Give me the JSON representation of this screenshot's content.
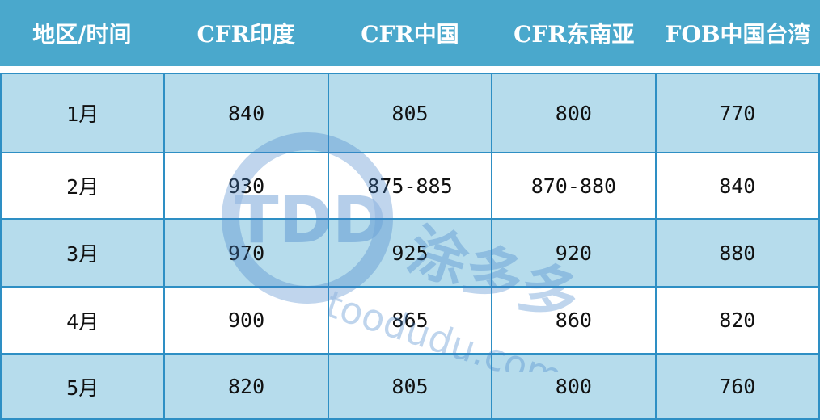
{
  "table": {
    "headers": [
      "地区/时间",
      "CFR印度",
      "CFR中国",
      "CFR东南亚",
      "FOB中国台湾"
    ],
    "rows": [
      [
        "1月",
        "840",
        "805",
        "800",
        "770"
      ],
      [
        "2月",
        "930",
        "875-885",
        "870-880",
        "840"
      ],
      [
        "3月",
        "970",
        "925",
        "920",
        "880"
      ],
      [
        "4月",
        "900",
        "865",
        "860",
        "820"
      ],
      [
        "5月",
        "820",
        "805",
        "800",
        "760"
      ]
    ]
  },
  "watermark": {
    "logo": "TDD",
    "brand": "涂多多",
    "site": "toodudu.com"
  },
  "colors": {
    "header": "#4aa8cc",
    "row_alt": "#b6dcec",
    "border": "#2e8fc4",
    "watermark": "#3f7fc8"
  }
}
